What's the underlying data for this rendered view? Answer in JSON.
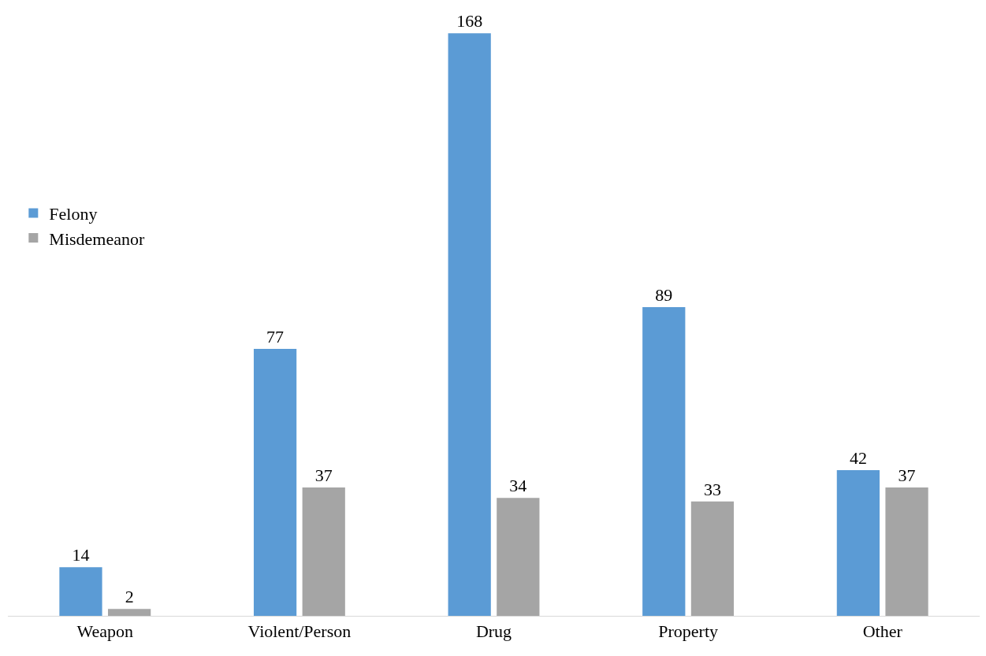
{
  "chart_data": {
    "type": "bar",
    "categories": [
      "Weapon",
      "Violent/Person",
      "Drug",
      "Property",
      "Other"
    ],
    "series": [
      {
        "name": "Felony",
        "color": "#5b9bd5",
        "values": [
          14,
          77,
          168,
          89,
          42
        ]
      },
      {
        "name": "Misdemeanor",
        "color": "#a5a5a5",
        "values": [
          2,
          37,
          34,
          33,
          37
        ]
      }
    ],
    "data_labels": true,
    "legend": "left"
  }
}
